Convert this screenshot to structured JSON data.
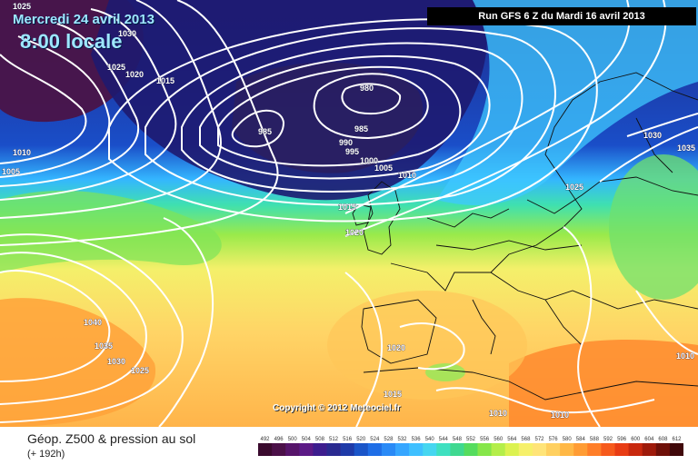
{
  "header": {
    "date": "Mercredi 24 avril 2013",
    "time": "8:00 locale",
    "run": "Run GFS 6 Z du Mardi 16 avril 2013"
  },
  "footer": {
    "title": "Géop. Z500 & pression au sol",
    "lead": "(+ 192h)",
    "copyright": "Copyright © 2012 Meteociel.fr"
  },
  "isobar_labels": [
    "1025",
    "1030",
    "1025",
    "1020",
    "1015",
    "1010",
    "1005",
    "980",
    "985",
    "985",
    "990",
    "995",
    "1000",
    "1005",
    "1010",
    "1015",
    "1020",
    "1030",
    "1035",
    "1025",
    "1040",
    "1035",
    "1030",
    "1025",
    "1020",
    "1015",
    "1010",
    "1010",
    "1010"
  ],
  "legend": {
    "values": [
      "492",
      "496",
      "500",
      "504",
      "508",
      "512",
      "516",
      "520",
      "524",
      "528",
      "532",
      "536",
      "540",
      "544",
      "548",
      "552",
      "556",
      "560",
      "564",
      "568",
      "572",
      "576",
      "580",
      "584",
      "588",
      "592",
      "596",
      "600",
      "604",
      "608",
      "612"
    ],
    "colors": [
      "#3a0a2e",
      "#4b1048",
      "#56146a",
      "#5c1a86",
      "#3d1d8e",
      "#2a2a90",
      "#1e3aa8",
      "#1a55c8",
      "#1f6ee6",
      "#2a8af6",
      "#36a6ff",
      "#3fc0ff",
      "#46d6f0",
      "#3fe0c0",
      "#3fd890",
      "#55dc5e",
      "#86e64a",
      "#b4ee4a",
      "#dcf250",
      "#f6f06a",
      "#ffe478",
      "#ffd060",
      "#ffb846",
      "#ff9c34",
      "#ff7e28",
      "#f65a1c",
      "#e83c14",
      "#c8280e",
      "#9e1a0a",
      "#6e1008",
      "#40080a"
    ]
  }
}
